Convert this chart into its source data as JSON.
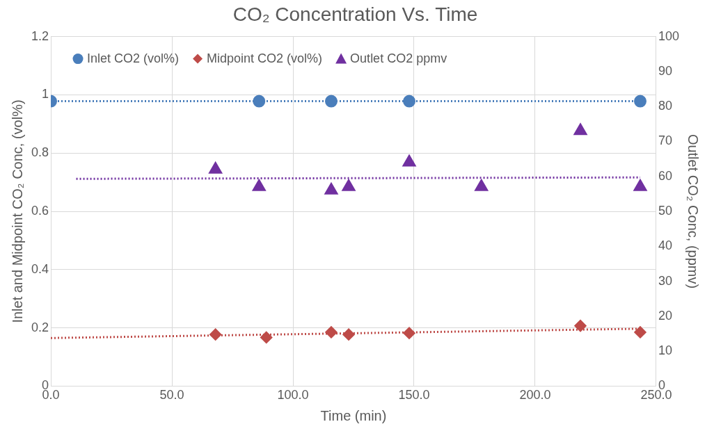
{
  "chart_data": {
    "type": "scatter",
    "title": "CO₂ Concentration Vs. Time",
    "xlabel": "Time (min)",
    "ylabel": "Inlet and Midpoint CO₂ Conc, (vol%)",
    "y2label": "Outlet CO₂ Conc, (ppmv)",
    "xlim": [
      0,
      250
    ],
    "xticks": [
      {
        "value": 0,
        "label": "0.0"
      },
      {
        "value": 50,
        "label": "50.0"
      },
      {
        "value": 100,
        "label": "100.0"
      },
      {
        "value": 150,
        "label": "150.0"
      },
      {
        "value": 200,
        "label": "200.0"
      },
      {
        "value": 250,
        "label": "250.0"
      }
    ],
    "ylim": [
      0,
      1.2
    ],
    "yticks": [
      0,
      0.2,
      0.4,
      0.6,
      0.8,
      1,
      1.2
    ],
    "y2lim": [
      0,
      100
    ],
    "y2ticks": [
      0,
      10,
      20,
      30,
      40,
      50,
      60,
      70,
      80,
      90,
      100
    ],
    "grid": true,
    "legend": "top left",
    "series": [
      {
        "name": "Inlet CO2 (vol%)",
        "color": "#4a7ebb",
        "marker": "circle",
        "x": [
          0,
          86,
          115.8,
          148,
          243.4
        ],
        "values": [
          0.978,
          0.978,
          0.978,
          0.978,
          0.978
        ]
      },
      {
        "name": "Midpoint CO2 (vol%)",
        "color": "#be4b48",
        "marker": "diamond",
        "x": [
          68,
          89,
          115.8,
          123,
          148,
          218.7,
          243.4
        ],
        "values": [
          0.177,
          0.167,
          0.185,
          0.177,
          0.182,
          0.207,
          0.185
        ]
      },
      {
        "name": "Outlet CO2 ppmv",
        "color": "#7030a0",
        "marker": "triangle",
        "axis": "y2",
        "x": [
          68,
          86,
          115.8,
          123,
          148,
          177.8,
          218.7,
          243.4
        ],
        "values": [
          62,
          57,
          56,
          57,
          64,
          57,
          73,
          57
        ]
      },
      {
        "type": "line",
        "color": "#4a7ebb",
        "marker": "none",
        "line_style": "dotted",
        "x": [
          0,
          243.4
        ],
        "values": [
          0.978,
          0.978
        ]
      },
      {
        "type": "line",
        "color": "#be4b48",
        "marker": "none",
        "line_style": "dotted",
        "x": [
          0,
          243.4
        ],
        "values": [
          0.165,
          0.197
        ]
      },
      {
        "type": "line",
        "color": "#7030a0",
        "marker": "none",
        "line_style": "dotted",
        "axis": "y2",
        "x": [
          10.5,
          243.4
        ],
        "values": [
          59.3,
          59.7
        ]
      }
    ]
  }
}
